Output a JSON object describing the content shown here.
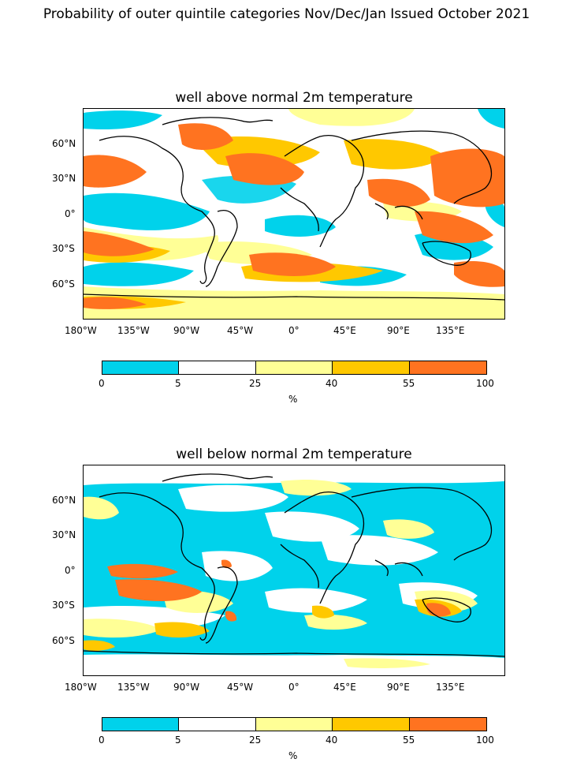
{
  "suptitle": "Probability of outer quintile categories Nov/Dec/Jan Issued October 2021",
  "colors": {
    "bin0": "#00d2eb",
    "bin1": "#ffffff",
    "bin2": "#ffff96",
    "bin3": "#ffc800",
    "bin4": "#ff7320",
    "land_outline": "#000000"
  },
  "panels": [
    {
      "title": "well above normal 2m temperature",
      "lat_ticks": [
        "60°N",
        "30°N",
        "0°",
        "30°S",
        "60°S"
      ],
      "lon_ticks": [
        "180°W",
        "135°W",
        "90°W",
        "45°W",
        "0°",
        "45°E",
        "90°E",
        "135°E"
      ],
      "colorbar": {
        "levels": [
          "0",
          "5",
          "25",
          "40",
          "55",
          "100"
        ],
        "unit": "%"
      }
    },
    {
      "title": "well below normal 2m temperature",
      "lat_ticks": [
        "60°N",
        "30°N",
        "0°",
        "30°S",
        "60°S"
      ],
      "lon_ticks": [
        "180°W",
        "135°W",
        "90°W",
        "45°W",
        "0°",
        "45°E",
        "90°E",
        "135°E"
      ],
      "colorbar": {
        "levels": [
          "0",
          "5",
          "25",
          "40",
          "55",
          "100"
        ],
        "unit": "%"
      }
    }
  ]
}
